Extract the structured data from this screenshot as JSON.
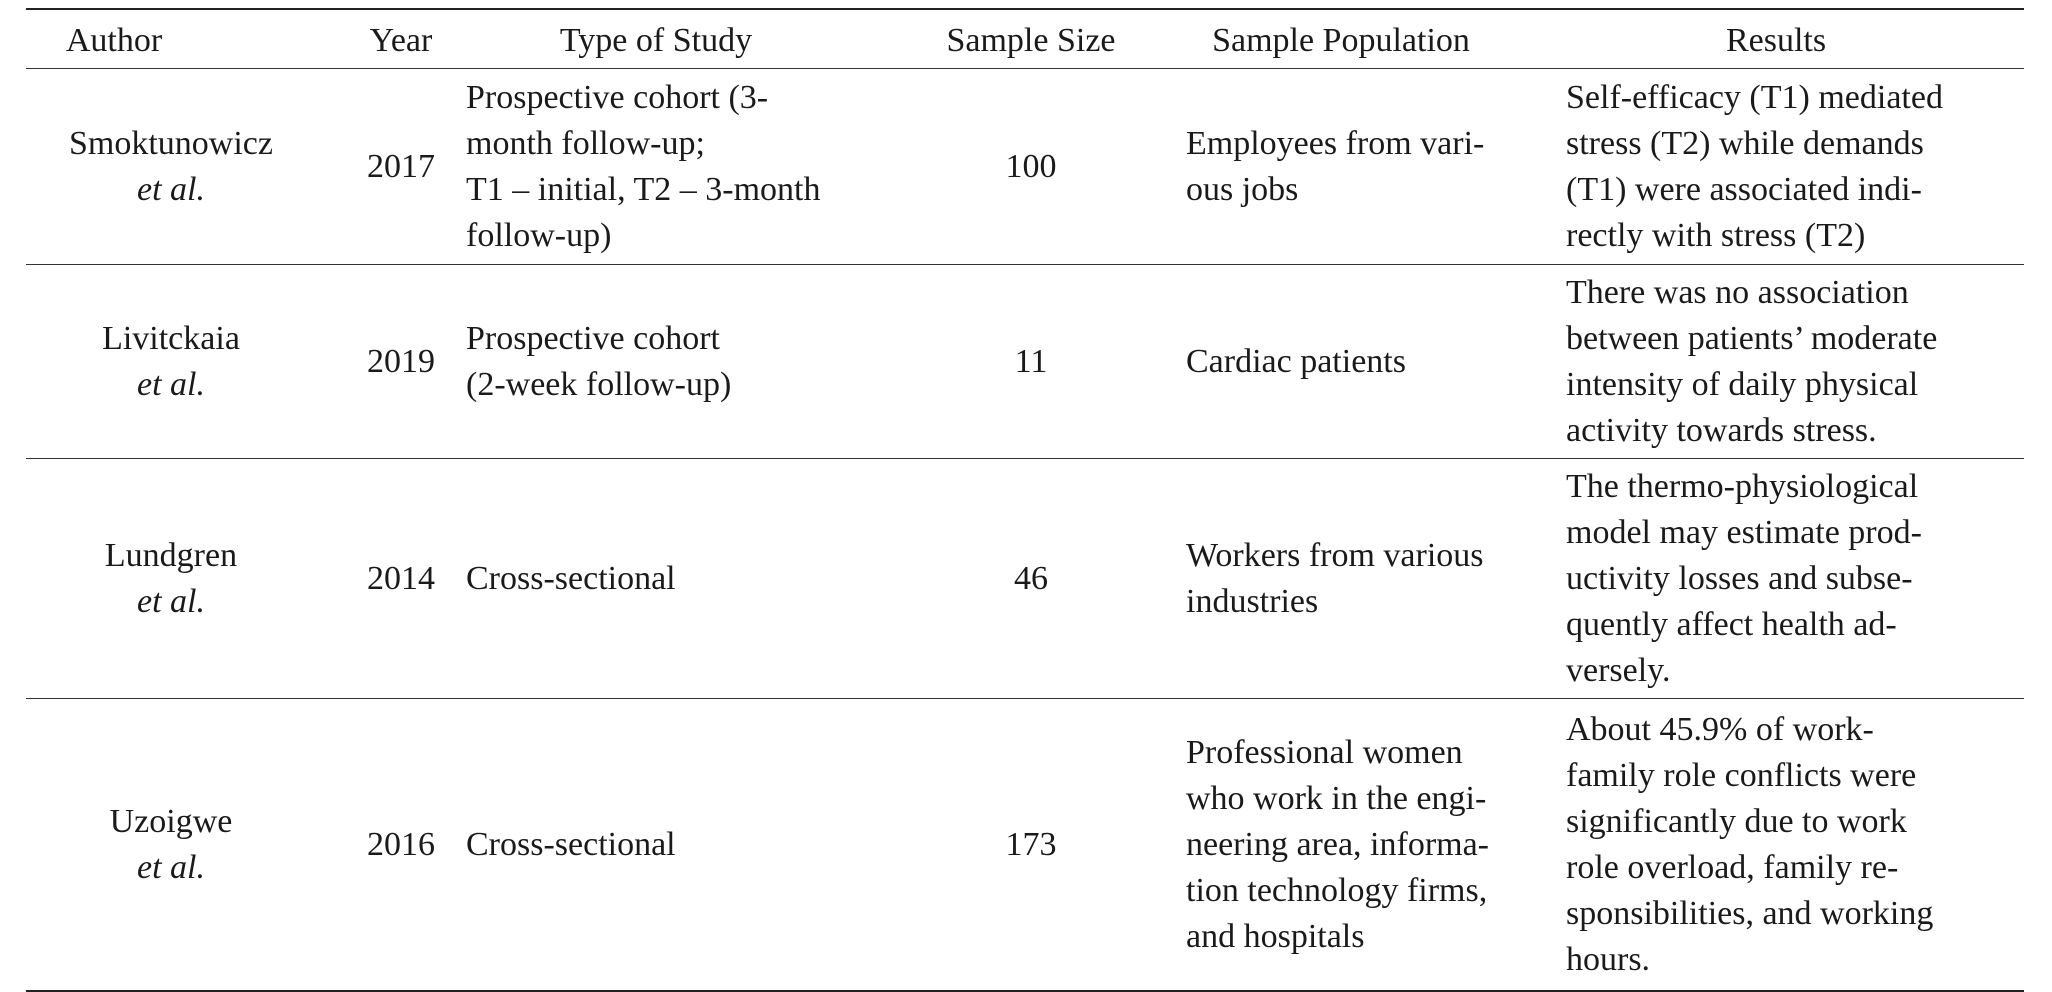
{
  "columns": [
    "Author",
    "Year",
    "Type of Study",
    "Sample Size",
    "Sample Population",
    "Results"
  ],
  "rows": [
    {
      "author": "Smoktunowicz",
      "etal": "et al.",
      "year": "2017",
      "type": [
        "Prospective cohort (3-",
        "month follow-up;",
        "T1 – initial, T2 – 3-month",
        "follow-up)"
      ],
      "sample_size": "100",
      "population": [
        "Employees from vari-",
        "ous jobs"
      ],
      "results": [
        "Self-efficacy (T1) mediated",
        "stress (T2) while demands",
        "(T1) were associated indi-",
        "rectly with stress (T2)"
      ]
    },
    {
      "author": "Livitckaia",
      "etal": "et al.",
      "year": "2019",
      "type": [
        "Prospective cohort",
        "(2-week follow-up)"
      ],
      "sample_size": "11",
      "population": [
        "Cardiac patients"
      ],
      "results": [
        "There was no association",
        "between patients’ moderate",
        "intensity of daily physical",
        "activity towards stress."
      ]
    },
    {
      "author": "Lundgren",
      "etal": "et al.",
      "year": "2014",
      "type": [
        "Cross-sectional"
      ],
      "sample_size": "46",
      "population": [
        "Workers from various",
        "industries"
      ],
      "results": [
        "The thermo-physiological",
        "model may estimate prod-",
        "uctivity losses and subse-",
        "quently affect health ad-",
        "versely."
      ]
    },
    {
      "author": "Uzoigwe",
      "etal": "et al.",
      "year": "2016",
      "type": [
        "Cross-sectional"
      ],
      "sample_size": "173",
      "population": [
        "Professional women",
        "who work in the engi-",
        "neering area, informa-",
        "tion technology firms,",
        "and hospitals"
      ],
      "results": [
        "About 45.9% of work-",
        "family role conflicts were",
        "significantly due to work",
        "role overload, family re-",
        "sponsibilities, and working",
        "hours."
      ]
    }
  ]
}
